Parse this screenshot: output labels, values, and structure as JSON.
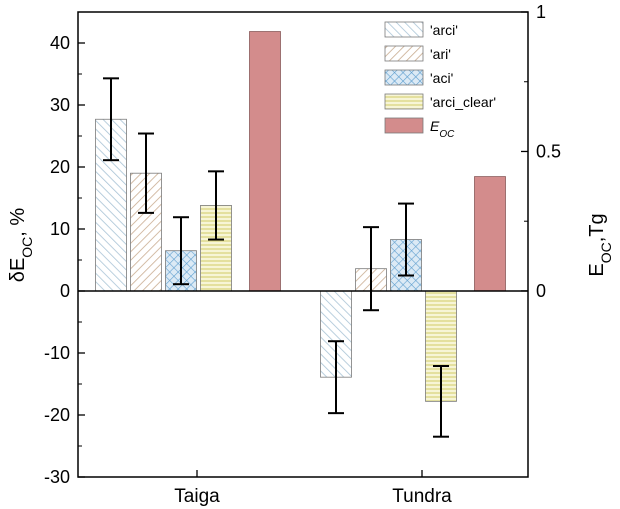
{
  "chart_data": {
    "type": "bar",
    "categories": [
      "Taiga",
      "Tundra"
    ],
    "series": [
      {
        "name": "'arci'",
        "values": [
          27.7,
          -13.9
        ],
        "err": [
          6.6,
          5.8
        ],
        "color": "#a9c4d6",
        "pattern": "diag-left"
      },
      {
        "name": "'ari'",
        "values": [
          19.0,
          3.6
        ],
        "err": [
          6.4,
          6.7
        ],
        "color": "#d2bba5",
        "pattern": "diag-right"
      },
      {
        "name": "'aci'",
        "values": [
          6.5,
          8.3
        ],
        "err": [
          5.4,
          5.8
        ],
        "color": "#7fb2d6",
        "pattern": "crosshatch"
      },
      {
        "name": "'arci_clear'",
        "values": [
          13.8,
          -17.8
        ],
        "err": [
          5.5,
          5.7
        ],
        "color": "#e8e4a0",
        "pattern": "horizontal"
      }
    ],
    "secondary_series": {
      "name": "E_OC",
      "axis": "right",
      "values": [
        0.93,
        0.41
      ],
      "color": "#d38c8c"
    },
    "ylabel": "δE_OC, %",
    "y2label": "E_OC,Tg",
    "ylim": [
      -30,
      45
    ],
    "yticks": [
      -30,
      -20,
      -10,
      0,
      10,
      20,
      30,
      40
    ],
    "y2lim": [
      -0.667,
      1.0
    ],
    "y2ticks": [
      0,
      0.5,
      1
    ],
    "y2ticklabels": [
      "0",
      "0.5",
      "1"
    ],
    "xlabel": "",
    "legend": {
      "position": "top-right",
      "entries": [
        {
          "label": "'arci'",
          "pattern": "diag-left",
          "color": "#a9c4d6"
        },
        {
          "label": "'ari'",
          "pattern": "diag-right",
          "color": "#d2bba5"
        },
        {
          "label": "'aci'",
          "pattern": "crosshatch",
          "color": "#7fb2d6"
        },
        {
          "label": "'arci_clear'",
          "pattern": "horizontal",
          "color": "#e8e4a0"
        },
        {
          "label": "E",
          "sub": "OC",
          "pattern": "solid",
          "color": "#d38c8c"
        }
      ]
    },
    "ylabel_parts": {
      "prefix": "δE",
      "sub": "OC",
      "suffix": ", %"
    },
    "y2label_parts": {
      "prefix": "E",
      "sub": "OC",
      "suffix": ",Tg"
    }
  }
}
